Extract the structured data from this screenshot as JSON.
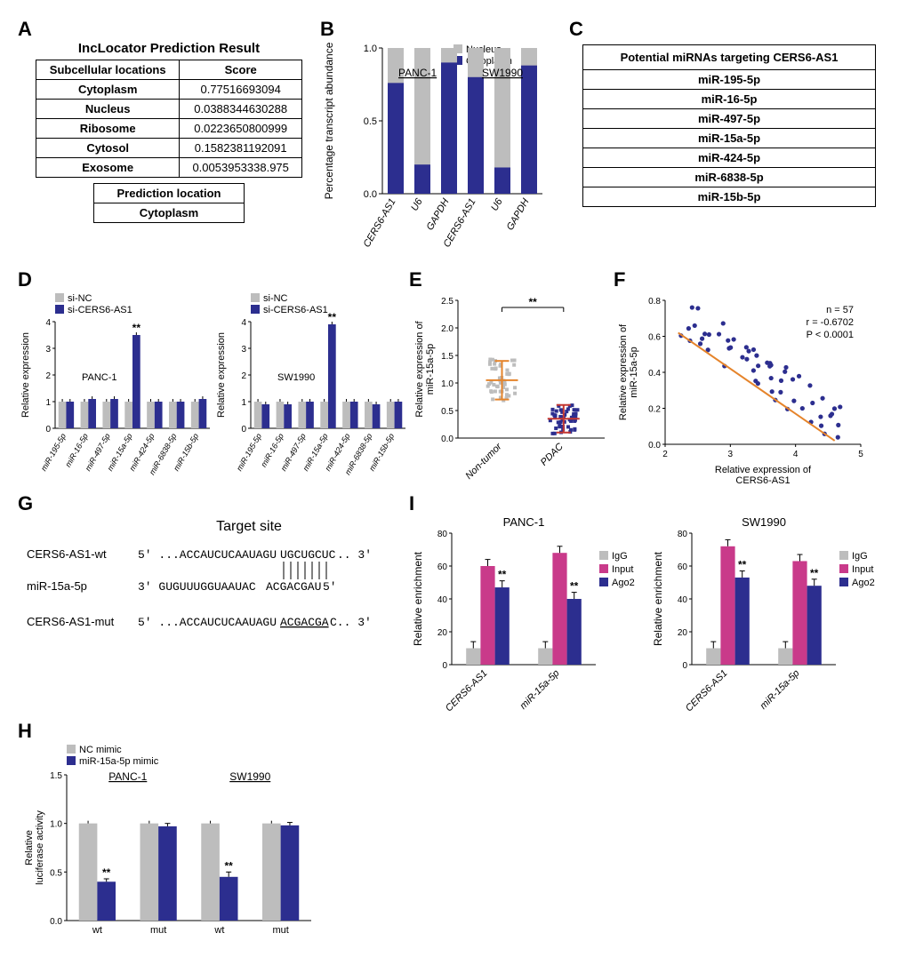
{
  "colors": {
    "navy": "#2c2e8f",
    "gray": "#bdbdbd",
    "magenta": "#c93a8a",
    "orange": "#e5842b",
    "red": "#c43731",
    "black": "#000000"
  },
  "panels": {
    "A": {
      "label": "A",
      "title": "IncLocator Prediction Result",
      "columns": [
        "Subcellular locations",
        "Score"
      ],
      "rows": [
        [
          "Cytoplasm",
          "0.77516693094"
        ],
        [
          "Nucleus",
          "0.0388344630288"
        ],
        [
          "Ribosome",
          "0.0223650800999"
        ],
        [
          "Cytosol",
          "0.1582381192091"
        ],
        [
          "Exosome",
          "0.0053953338.975"
        ]
      ],
      "sub_table": [
        [
          "Prediction location"
        ],
        [
          "Cytoplasm"
        ]
      ]
    },
    "B": {
      "label": "B",
      "y_label": "Percentage transcript abundance",
      "legend": [
        "Nucleus",
        "Cytoplasm"
      ],
      "legend_colors": [
        "#bdbdbd",
        "#2c2e8f"
      ],
      "categories": [
        "CERS6-AS1",
        "U6",
        "GAPDH",
        "CERS6-AS1",
        "U6",
        "GAPDH"
      ],
      "groups": [
        "PANC-1",
        "SW1990"
      ],
      "cytoplasm": [
        0.76,
        0.2,
        0.9,
        0.8,
        0.18,
        0.88
      ],
      "ylim": [
        0.0,
        1.0
      ],
      "ytick_step": 0.5
    },
    "C": {
      "label": "C",
      "header": "Potential miRNAs targeting CERS6-AS1",
      "rows": [
        "miR-195-5p",
        "miR-16-5p",
        "miR-497-5p",
        "miR-15a-5p",
        "miR-424-5p",
        "miR-6838-5p",
        "miR-15b-5p"
      ]
    },
    "D": {
      "label": "D",
      "y_label": "Relative expression",
      "legend": [
        "si-NC",
        "si-CERS6-AS1"
      ],
      "legend_colors": [
        "#bdbdbd",
        "#2c2e8f"
      ],
      "categories": [
        "miR-195-5p",
        "miR-16-5p",
        "miR-497-5p",
        "miR-15a-5p",
        "miR-424-5p",
        "miR-6838-5p",
        "miR-15b-5p"
      ],
      "panc1_name": "PANC-1",
      "sw1990_name": "SW1990",
      "panc1_sinc": [
        1.0,
        1.0,
        1.0,
        1.0,
        1.0,
        1.0,
        1.0
      ],
      "panc1_sicers": [
        1.0,
        1.1,
        1.1,
        3.5,
        1.0,
        1.0,
        1.1
      ],
      "sw1990_sinc": [
        1.0,
        1.0,
        1.0,
        1.0,
        1.0,
        1.0,
        1.0
      ],
      "sw1990_sicers": [
        0.9,
        0.9,
        1.0,
        3.9,
        1.0,
        0.9,
        1.0
      ],
      "ylim": [
        0,
        4
      ],
      "sig": "**"
    },
    "E": {
      "label": "E",
      "y_label": "Relative expression of miR-15a-5p",
      "categories": [
        "Non-tumor",
        "PDAC"
      ],
      "means": [
        1.05,
        0.35
      ],
      "sd": [
        0.35,
        0.25
      ],
      "ylim": [
        0.0,
        2.5
      ],
      "ytick_step": 0.5,
      "sig": "**",
      "colors": [
        "#bdbdbd",
        "#2c2e8f"
      ]
    },
    "F": {
      "label": "F",
      "x_label": "Relative expression of CERS6-AS1",
      "y_label": "Relative expression of miR-15a-5p",
      "n_text": "n = 57",
      "r_text": "r = -0.6702",
      "p_text": "P < 0.0001",
      "xlim": [
        2,
        5
      ],
      "ylim": [
        0.0,
        0.8
      ],
      "xtick_step": 1,
      "ytick_step": 0.2,
      "line": {
        "x1": 2.2,
        "y1": 0.62,
        "x2": 4.6,
        "y2": 0.02,
        "color": "#e5842b"
      },
      "point_color": "#2c2e8f"
    },
    "G": {
      "label": "G",
      "title": "Target site",
      "rows": [
        {
          "name": "CERS6-AS1-wt",
          "l": "5' ...ACCAUCUCAAUAGU",
          "mid": "UGCUGCUC",
          "r": ".. 3'"
        },
        {
          "name": "miR-15a-5p",
          "l": "3'  GUGUUUGGUAAUAC",
          "mid": "ACGACGAU",
          "r": " 5'"
        },
        {
          "name": "CERS6-AS1-mut",
          "l": "5' ...ACCAUCUCAAUAGU",
          "mid": "ACGACGA",
          "r": "C.. 3'",
          "underline": true
        }
      ]
    },
    "H": {
      "label": "H",
      "y_label": "Relative luciferase activity",
      "legend": [
        "NC mimic",
        "miR-15a-5p mimic"
      ],
      "legend_colors": [
        "#bdbdbd",
        "#2c2e8f"
      ],
      "groups": [
        "PANC-1",
        "SW1990"
      ],
      "categories": [
        "wt",
        "mut",
        "wt",
        "mut"
      ],
      "nc": [
        1.0,
        1.0,
        1.0,
        1.0
      ],
      "mimic": [
        0.4,
        0.97,
        0.45,
        0.98
      ],
      "err": [
        0.03,
        0.03,
        0.05,
        0.03
      ],
      "ylim": [
        0.0,
        1.5
      ],
      "ytick_step": 0.5,
      "sig_idx": [
        0,
        2
      ],
      "sig": "**"
    },
    "I": {
      "label": "I",
      "y_label": "Relative enrichment",
      "legend": [
        "IgG",
        "Input",
        "Ago2"
      ],
      "legend_colors": [
        "#bdbdbd",
        "#c93a8a",
        "#2c2e8f"
      ],
      "groups": [
        "PANC-1",
        "SW1990"
      ],
      "categories": [
        "CERS6-AS1",
        "miR-15a-5p"
      ],
      "panc1_vals": {
        "IgG": [
          10,
          10
        ],
        "Input": [
          60,
          68
        ],
        "Ago2": [
          47,
          40
        ]
      },
      "sw1990_vals": {
        "IgG": [
          10,
          10
        ],
        "Input": [
          72,
          63
        ],
        "Ago2": [
          53,
          48
        ]
      },
      "err": 4,
      "ylim": [
        0,
        80
      ],
      "ytick_step": 20,
      "sig": "**"
    }
  }
}
